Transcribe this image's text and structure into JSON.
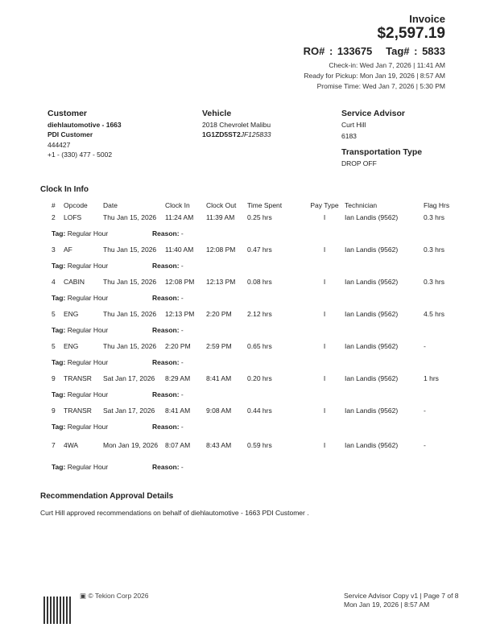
{
  "header": {
    "title": "Invoice",
    "amount": "$2,597.19",
    "ro": "RO# : 133675",
    "tag": "Tag# : 5833",
    "checkin": "Check-in: Wed Jan 7, 2026 | 11:41 AM",
    "ready": "Ready for Pickup: Mon Jan 19, 2026 | 8:57 AM",
    "promise": "Promise Time: Wed Jan 7, 2026 | 5:30 PM"
  },
  "customer": {
    "heading": "Customer",
    "name1": "diehlautomotive - 1663",
    "name2": "PDI Customer",
    "id": "444427",
    "phone": "+1 - (330) 477 - 5002"
  },
  "vehicle": {
    "heading": "Vehicle",
    "model": "2018 Chevrolet Malibu",
    "vin_prefix": "1G1ZD5ST2",
    "vin_suffix": "JF125833"
  },
  "advisor": {
    "heading": "Service Advisor",
    "name": "Curt Hill",
    "id": "6183",
    "transport_heading": "Transportation Type",
    "transport": "DROP OFF"
  },
  "clock": {
    "heading": "Clock In Info",
    "columns": [
      "#",
      "Opcode",
      "Date",
      "Clock In",
      "Clock Out",
      "Time Spent",
      "Pay Type",
      "Technician",
      "Flag Hrs"
    ],
    "tag_label": "Tag:",
    "reason_label": "Reason:",
    "rows": [
      {
        "n": "2",
        "op": "LOFS",
        "date": "Thu Jan 15, 2026",
        "in": "11:24 AM",
        "out": "11:39 AM",
        "spent": "0.25 hrs",
        "pay": "I",
        "tech": "Ian Landis (9562)",
        "flag": "0.3 hrs",
        "tag": "Regular Hour",
        "reason": "-"
      },
      {
        "n": "3",
        "op": "AF",
        "date": "Thu Jan 15, 2026",
        "in": "11:40 AM",
        "out": "12:08 PM",
        "spent": "0.47 hrs",
        "pay": "I",
        "tech": "Ian Landis (9562)",
        "flag": "0.3 hrs",
        "tag": "Regular Hour",
        "reason": "-"
      },
      {
        "n": "4",
        "op": "CABIN",
        "date": "Thu Jan 15, 2026",
        "in": "12:08 PM",
        "out": "12:13 PM",
        "spent": "0.08 hrs",
        "pay": "I",
        "tech": "Ian Landis (9562)",
        "flag": "0.3 hrs",
        "tag": "Regular Hour",
        "reason": "-"
      },
      {
        "n": "5",
        "op": "ENG",
        "date": "Thu Jan 15, 2026",
        "in": "12:13 PM",
        "out": "2:20 PM",
        "spent": "2.12 hrs",
        "pay": "I",
        "tech": "Ian Landis (9562)",
        "flag": "4.5 hrs",
        "tag": "Regular Hour",
        "reason": "-"
      },
      {
        "n": "5",
        "op": "ENG",
        "date": "Thu Jan 15, 2026",
        "in": "2:20 PM",
        "out": "2:59 PM",
        "spent": "0.65 hrs",
        "pay": "I",
        "tech": "Ian Landis (9562)",
        "flag": "-",
        "tag": "Regular Hour",
        "reason": "-"
      },
      {
        "n": "9",
        "op": "TRANSR",
        "date": "Sat Jan 17, 2026",
        "in": "8:29 AM",
        "out": "8:41 AM",
        "spent": "0.20 hrs",
        "pay": "I",
        "tech": "Ian Landis (9562)",
        "flag": "1 hrs",
        "tag": "Regular Hour",
        "reason": "-"
      },
      {
        "n": "9",
        "op": "TRANSR",
        "date": "Sat Jan 17, 2026",
        "in": "8:41 AM",
        "out": "9:08 AM",
        "spent": "0.44 hrs",
        "pay": "I",
        "tech": "Ian Landis (9562)",
        "flag": "-",
        "tag": "Regular Hour",
        "reason": "-"
      },
      {
        "n": "7",
        "op": "4WA",
        "date": "Mon Jan 19, 2026",
        "in": "8:07 AM",
        "out": "8:43 AM",
        "spent": "0.59 hrs",
        "pay": "I",
        "tech": "Ian Landis (9562)",
        "flag": "-",
        "tag": "Regular Hour",
        "reason": "-"
      }
    ]
  },
  "recommendation": {
    "heading": "Recommendation Approval Details",
    "text": "Curt Hill approved recommendations on behalf of diehlautomotive - 1663 PDI Customer ."
  },
  "footer": {
    "copyright": "© Tekion Corp 2026",
    "copy": "Service Advisor Copy v1 | Page 7 of 8",
    "date": "Mon Jan 19, 2026 | 8:57 AM"
  }
}
